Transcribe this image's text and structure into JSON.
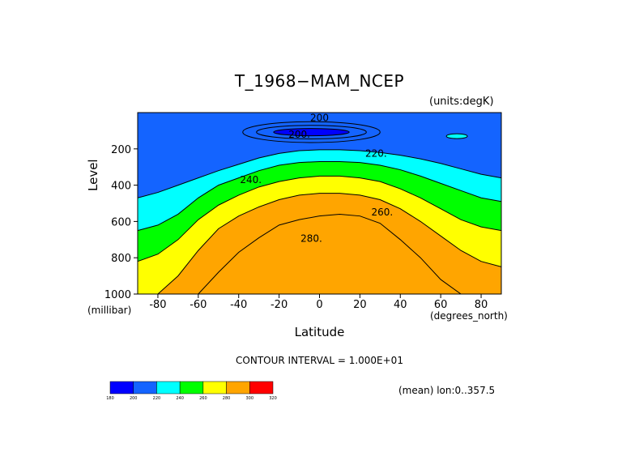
{
  "chart_data": {
    "type": "contour",
    "title": "T_1968−MAM_NCEP",
    "units_label": "(units:degK)",
    "xlabel": "Latitude",
    "x_unit_label": "(degrees_north)",
    "ylabel": "Level",
    "y_unit_label": "(millibar)",
    "xlim": [
      -90,
      90
    ],
    "ylim": [
      1000,
      0
    ],
    "x_ticks": [
      -80,
      -60,
      -40,
      -20,
      0,
      20,
      40,
      60,
      80
    ],
    "y_ticks": [
      200,
      400,
      600,
      800,
      1000
    ],
    "contour_interval_label": "CONTOUR INTERVAL = 1.000E+01",
    "mean_label": "(mean) lon:0..357.5",
    "levels": [
      180,
      200,
      220,
      240,
      260,
      280,
      300,
      320
    ],
    "fill_colors": [
      "#0000ff",
      "#1464ff",
      "#00ffff",
      "#00ff00",
      "#ffff00",
      "#ffa500",
      "#ff0000"
    ],
    "contour_labels": [
      {
        "text": "200.",
        "lat": -10,
        "level": 120
      },
      {
        "text": "220.",
        "lat": 28,
        "level": 225
      },
      {
        "text": "240.",
        "lat": -34,
        "level": 370
      },
      {
        "text": "260.",
        "lat": 31,
        "level": 550
      },
      {
        "text": "280.",
        "lat": -4,
        "level": 695
      },
      {
        "text": "200",
        "lat": 0,
        "level": 30
      }
    ],
    "isoline_data_columns": [
      "lat",
      "p200",
      "p220",
      "p240",
      "p260",
      "p280",
      "p290"
    ],
    "isolines": [
      [
        -90,
        0,
        470,
        650,
        820,
        1000,
        1000
      ],
      [
        -80,
        0,
        440,
        620,
        780,
        1000,
        1000
      ],
      [
        -70,
        0,
        400,
        560,
        700,
        900,
        1000
      ],
      [
        -60,
        0,
        360,
        470,
        590,
        760,
        1000
      ],
      [
        -50,
        0,
        320,
        400,
        510,
        640,
        880
      ],
      [
        -40,
        0,
        285,
        360,
        455,
        570,
        770
      ],
      [
        -30,
        0,
        250,
        320,
        410,
        520,
        690
      ],
      [
        -20,
        0,
        225,
        290,
        380,
        480,
        620
      ],
      [
        -10,
        0,
        210,
        275,
        360,
        455,
        590
      ],
      [
        0,
        0,
        205,
        270,
        350,
        445,
        570
      ],
      [
        10,
        0,
        205,
        270,
        350,
        445,
        560
      ],
      [
        20,
        0,
        210,
        275,
        360,
        455,
        570
      ],
      [
        30,
        0,
        220,
        290,
        380,
        480,
        610
      ],
      [
        40,
        0,
        235,
        315,
        420,
        530,
        700
      ],
      [
        50,
        0,
        255,
        350,
        470,
        600,
        800
      ],
      [
        60,
        0,
        280,
        390,
        530,
        680,
        920
      ],
      [
        70,
        0,
        310,
        430,
        590,
        760,
        1000
      ],
      [
        80,
        0,
        340,
        470,
        630,
        820,
        1000
      ],
      [
        90,
        0,
        360,
        490,
        650,
        850,
        1000
      ]
    ],
    "cold_core": {
      "lat_min": -38,
      "lat_max": 30,
      "level_top": 50,
      "level_bottom": 165,
      "value_below": 200
    },
    "colorbar": {
      "bounds": [
        "180",
        "200",
        "220",
        "240",
        "260",
        "280",
        "300",
        "320"
      ],
      "colors": [
        "#0000ff",
        "#1464ff",
        "#00ffff",
        "#00ff00",
        "#ffff00",
        "#ffa500",
        "#ff0000"
      ]
    }
  }
}
